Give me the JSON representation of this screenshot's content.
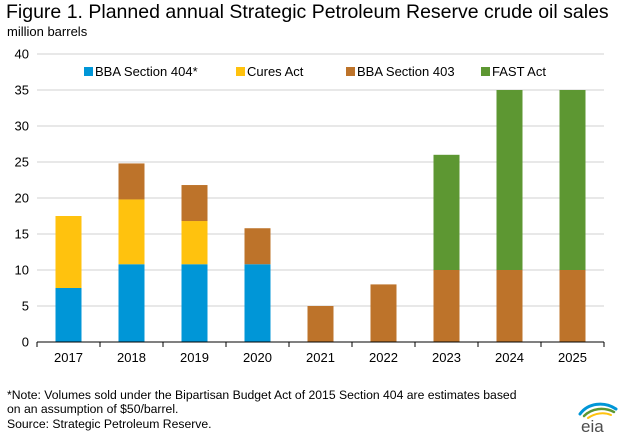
{
  "title": "Figure 1. Planned annual Strategic Petroleum Reserve crude oil sales",
  "subtitle": "million barrels",
  "chart_data": {
    "type": "bar",
    "stacked": true,
    "categories": [
      "2017",
      "2018",
      "2019",
      "2020",
      "2021",
      "2022",
      "2023",
      "2024",
      "2025"
    ],
    "series": [
      {
        "name": "BBA Section 404*",
        "color": "#0096d7",
        "values": [
          7.5,
          10.8,
          10.8,
          10.8,
          0,
          0,
          0,
          0,
          0
        ]
      },
      {
        "name": "Cures Act",
        "color": "#ffc20e",
        "values": [
          10,
          9,
          6,
          0,
          0,
          0,
          0,
          0,
          0
        ]
      },
      {
        "name": "BBA Section 403",
        "color": "#bd732a",
        "values": [
          0,
          5,
          5,
          5,
          5,
          8,
          10,
          10,
          10
        ]
      },
      {
        "name": "FAST Act",
        "color": "#5d9732",
        "values": [
          0,
          0,
          0,
          0,
          0,
          0,
          16,
          25,
          25
        ]
      }
    ],
    "ylim": [
      0,
      40
    ],
    "yticks": [
      0,
      5,
      10,
      15,
      20,
      25,
      30,
      35,
      40
    ],
    "grid": true,
    "legend": "top"
  },
  "footnotes": {
    "note_line1": "*Note: Volumes sold under the Bipartisan Budget Act of 2015 Section 404 are estimates based",
    "note_line2": "on an assumption of $50/barrel.",
    "source": "Source: Strategic Petroleum Reserve."
  },
  "logo": {
    "text": "eia",
    "colors": [
      "#0096d7",
      "#5d9732",
      "#ffc20e"
    ]
  }
}
